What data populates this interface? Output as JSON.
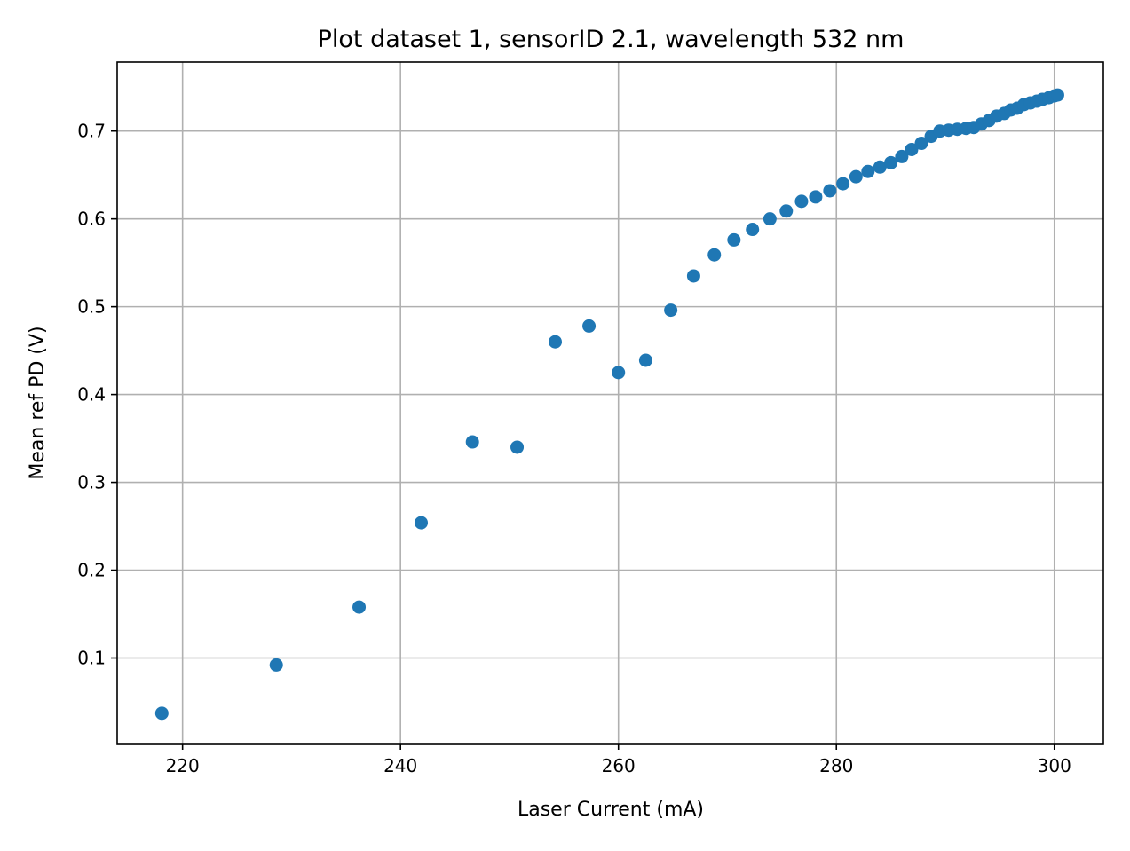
{
  "chart_data": {
    "type": "scatter",
    "title": "Plot dataset 1, sensorID 2.1, wavelength 532 nm",
    "xlabel": "Laser Current (mA)",
    "ylabel": "Mean ref PD (V)",
    "xlim": [
      214,
      304.5
    ],
    "ylim": [
      0.0025,
      0.7785
    ],
    "xticks": [
      220,
      240,
      260,
      280,
      300
    ],
    "xtick_labels": [
      "220",
      "240",
      "260",
      "280",
      "300"
    ],
    "yticks": [
      0.1,
      0.2,
      0.3,
      0.4,
      0.5,
      0.6,
      0.7
    ],
    "ytick_labels": [
      "0.1",
      "0.2",
      "0.3",
      "0.4",
      "0.5",
      "0.6",
      "0.7"
    ],
    "grid": true,
    "marker_color": "#1f77b4",
    "series": [
      {
        "x": [
          218.1,
          228.6,
          236.2,
          241.9,
          246.6,
          250.7,
          254.2,
          257.3,
          260.0,
          262.5,
          264.8,
          266.9,
          268.8,
          270.6,
          272.3,
          273.9,
          275.4,
          276.8,
          278.1,
          279.4,
          280.6,
          281.8,
          282.9,
          284.0,
          285.0,
          286.0,
          286.9,
          287.8,
          288.7,
          289.5,
          290.3,
          291.1,
          291.9,
          292.6,
          293.3,
          294.0,
          294.7,
          295.4,
          296.0,
          296.6,
          297.2,
          297.8,
          298.4,
          298.9,
          299.5,
          300.0,
          300.3
        ],
        "y": [
          0.037,
          0.092,
          0.158,
          0.254,
          0.346,
          0.34,
          0.46,
          0.478,
          0.425,
          0.439,
          0.496,
          0.535,
          0.559,
          0.576,
          0.588,
          0.6,
          0.609,
          0.62,
          0.625,
          0.632,
          0.64,
          0.648,
          0.654,
          0.659,
          0.664,
          0.671,
          0.679,
          0.686,
          0.694,
          0.7,
          0.701,
          0.702,
          0.703,
          0.704,
          0.708,
          0.712,
          0.717,
          0.72,
          0.724,
          0.726,
          0.73,
          0.732,
          0.734,
          0.736,
          0.738,
          0.74,
          0.741
        ]
      }
    ]
  }
}
